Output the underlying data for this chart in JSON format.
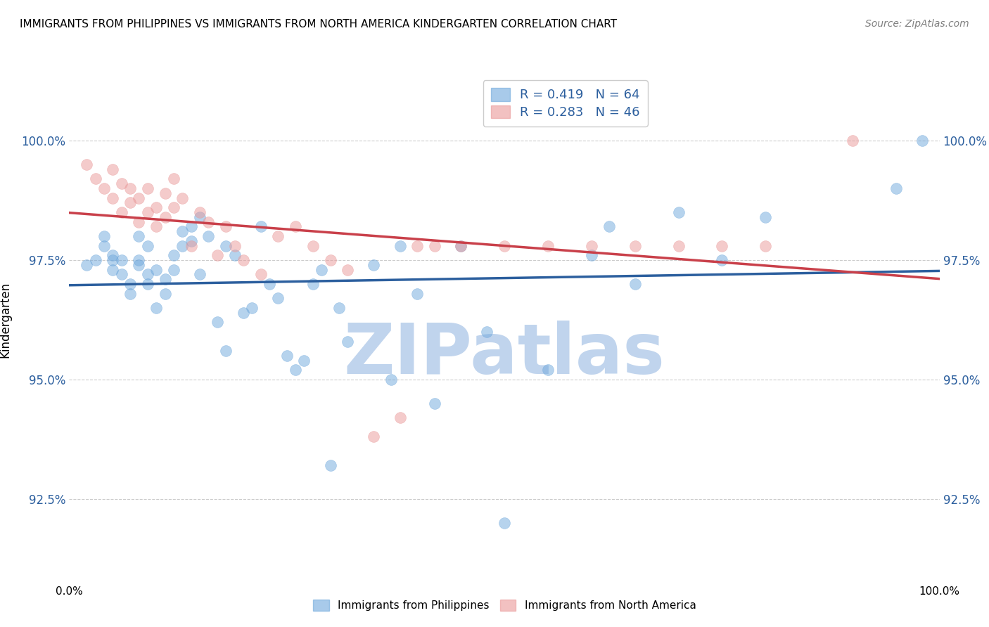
{
  "title": "IMMIGRANTS FROM PHILIPPINES VS IMMIGRANTS FROM NORTH AMERICA KINDERGARTEN CORRELATION CHART",
  "source": "Source: ZipAtlas.com",
  "ylabel": "Kindergarten",
  "yticks": [
    92.5,
    95.0,
    97.5,
    100.0
  ],
  "ytick_labels": [
    "92.5%",
    "95.0%",
    "97.5%",
    "100.0%"
  ],
  "xlim": [
    0.0,
    100.0
  ],
  "ylim": [
    91.0,
    101.5
  ],
  "blue_R": 0.419,
  "blue_N": 64,
  "pink_R": 0.283,
  "pink_N": 46,
  "blue_color": "#6fa8dc",
  "pink_color": "#ea9999",
  "blue_line_color": "#2c5f9e",
  "pink_line_color": "#c9404a",
  "watermark": "ZIPatlas",
  "watermark_color": "#c0d4ed",
  "legend_label_blue": "Immigrants from Philippines",
  "legend_label_pink": "Immigrants from North America",
  "blue_points_x": [
    2,
    3,
    4,
    4,
    5,
    5,
    5,
    6,
    6,
    7,
    7,
    8,
    8,
    8,
    9,
    9,
    9,
    10,
    10,
    11,
    11,
    12,
    12,
    13,
    13,
    14,
    14,
    15,
    15,
    16,
    17,
    18,
    18,
    19,
    20,
    21,
    22,
    23,
    24,
    25,
    26,
    27,
    28,
    29,
    30,
    31,
    32,
    35,
    37,
    38,
    40,
    42,
    45,
    48,
    50,
    55,
    60,
    62,
    65,
    70,
    75,
    80,
    95,
    98
  ],
  "blue_points_y": [
    97.4,
    97.5,
    97.8,
    98.0,
    97.3,
    97.5,
    97.6,
    97.2,
    97.5,
    96.8,
    97.0,
    97.4,
    97.5,
    98.0,
    97.0,
    97.2,
    97.8,
    96.5,
    97.3,
    96.8,
    97.1,
    97.3,
    97.6,
    97.8,
    98.1,
    97.9,
    98.2,
    97.2,
    98.4,
    98.0,
    96.2,
    95.6,
    97.8,
    97.6,
    96.4,
    96.5,
    98.2,
    97.0,
    96.7,
    95.5,
    95.2,
    95.4,
    97.0,
    97.3,
    93.2,
    96.5,
    95.8,
    97.4,
    95.0,
    97.8,
    96.8,
    94.5,
    97.8,
    96.0,
    92.0,
    95.2,
    97.6,
    98.2,
    97.0,
    98.5,
    97.5,
    98.4,
    99.0,
    100.0
  ],
  "pink_points_x": [
    2,
    3,
    4,
    5,
    5,
    6,
    6,
    7,
    7,
    8,
    8,
    9,
    9,
    10,
    10,
    11,
    11,
    12,
    12,
    13,
    14,
    15,
    16,
    17,
    18,
    19,
    20,
    22,
    24,
    26,
    28,
    30,
    32,
    35,
    38,
    40,
    42,
    45,
    50,
    55,
    60,
    65,
    70,
    75,
    80,
    90
  ],
  "pink_points_y": [
    99.5,
    99.2,
    99.0,
    98.8,
    99.4,
    98.5,
    99.1,
    98.7,
    99.0,
    98.3,
    98.8,
    98.5,
    99.0,
    98.2,
    98.6,
    98.4,
    98.9,
    98.6,
    99.2,
    98.8,
    97.8,
    98.5,
    98.3,
    97.6,
    98.2,
    97.8,
    97.5,
    97.2,
    98.0,
    98.2,
    97.8,
    97.5,
    97.3,
    93.8,
    94.2,
    97.8,
    97.8,
    97.8,
    97.8,
    97.8,
    97.8,
    97.8,
    97.8,
    97.8,
    97.8,
    100.0
  ]
}
